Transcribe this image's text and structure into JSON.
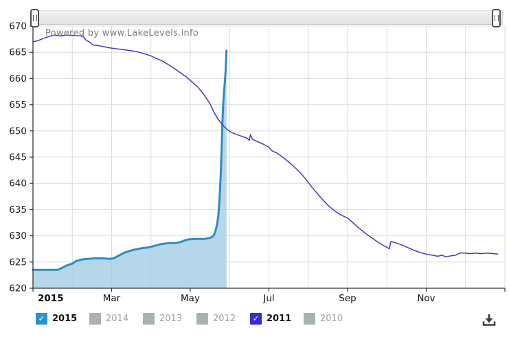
{
  "watermark": "Powered by www.LakeLevels.info",
  "chart_data": {
    "type": "line",
    "ylim": [
      620,
      670
    ],
    "ytick_step": 5,
    "yticks": [
      620,
      625,
      630,
      635,
      640,
      645,
      650,
      655,
      660,
      665,
      670
    ],
    "x_unit": "month (0 = Jan 1, 12 = Dec 31)",
    "x_range": [
      0,
      12
    ],
    "x_tick_months": [
      0,
      2,
      4,
      6,
      8,
      10,
      12
    ],
    "x_labels": [
      {
        "text": "2015",
        "month": 0,
        "bold": true,
        "align": "left"
      },
      {
        "text": "Mar",
        "month": 2,
        "bold": false,
        "align": "center"
      },
      {
        "text": "May",
        "month": 4,
        "bold": false,
        "align": "center"
      },
      {
        "text": "Jul",
        "month": 6,
        "bold": false,
        "align": "center"
      },
      {
        "text": "Sep",
        "month": 8,
        "bold": false,
        "align": "center"
      },
      {
        "text": "Nov",
        "month": 10,
        "bold": false,
        "align": "center"
      }
    ],
    "grid": true,
    "grid_color": "#dcdcdc",
    "axis_color": "#333333",
    "tick_label_color": "#1b1b1b",
    "legend_position": "bottom",
    "series": [
      {
        "name": "2015",
        "type": "area",
        "stroke": "#2b8dc5",
        "stroke_width": 3,
        "fill": "#a4cde5",
        "fill_opacity": 0.8,
        "points": [
          [
            0,
            623.5
          ],
          [
            0.3,
            623.5
          ],
          [
            0.62,
            623.5
          ],
          [
            0.72,
            623.8
          ],
          [
            0.85,
            624.3
          ],
          [
            1.0,
            624.7
          ],
          [
            1.1,
            625.2
          ],
          [
            1.25,
            625.5
          ],
          [
            1.55,
            625.7
          ],
          [
            1.8,
            625.7
          ],
          [
            1.95,
            625.6
          ],
          [
            2.05,
            625.7
          ],
          [
            2.15,
            626.1
          ],
          [
            2.3,
            626.7
          ],
          [
            2.45,
            627.1
          ],
          [
            2.6,
            627.4
          ],
          [
            2.75,
            627.6
          ],
          [
            2.95,
            627.8
          ],
          [
            3.1,
            628.1
          ],
          [
            3.25,
            628.4
          ],
          [
            3.45,
            628.6
          ],
          [
            3.6,
            628.6
          ],
          [
            3.75,
            628.8
          ],
          [
            3.85,
            629.1
          ],
          [
            3.95,
            629.3
          ],
          [
            4.15,
            629.4
          ],
          [
            4.35,
            629.4
          ],
          [
            4.5,
            629.6
          ],
          [
            4.58,
            629.9
          ],
          [
            4.63,
            630.6
          ],
          [
            4.67,
            631.8
          ],
          [
            4.71,
            633.5
          ],
          [
            4.74,
            636.5
          ],
          [
            4.77,
            641.0
          ],
          [
            4.8,
            647.0
          ],
          [
            4.82,
            652.0
          ],
          [
            4.84,
            655.5
          ],
          [
            4.86,
            657.5
          ],
          [
            4.88,
            659.5
          ],
          [
            4.9,
            661.5
          ],
          [
            4.91,
            663.5
          ],
          [
            4.92,
            665.3
          ]
        ]
      },
      {
        "name": "2011",
        "type": "line",
        "stroke": "#4238c8",
        "stroke_width": 1.5,
        "points": [
          [
            0,
            667.0
          ],
          [
            0.12,
            667.2
          ],
          [
            0.25,
            667.6
          ],
          [
            0.4,
            668.0
          ],
          [
            0.55,
            668.3
          ],
          [
            0.7,
            668.1
          ],
          [
            0.85,
            668.3
          ],
          [
            1.0,
            668.2
          ],
          [
            1.15,
            668.2
          ],
          [
            1.28,
            668.0
          ],
          [
            1.35,
            667.3
          ],
          [
            1.45,
            666.9
          ],
          [
            1.52,
            666.4
          ],
          [
            1.65,
            666.3
          ],
          [
            1.85,
            666.0
          ],
          [
            2.0,
            665.8
          ],
          [
            2.2,
            665.6
          ],
          [
            2.4,
            665.4
          ],
          [
            2.6,
            665.2
          ],
          [
            2.8,
            664.8
          ],
          [
            3.0,
            664.3
          ],
          [
            3.15,
            663.8
          ],
          [
            3.3,
            663.3
          ],
          [
            3.45,
            662.6
          ],
          [
            3.6,
            661.9
          ],
          [
            3.75,
            661.1
          ],
          [
            3.9,
            660.3
          ],
          [
            4.05,
            659.3
          ],
          [
            4.2,
            658.3
          ],
          [
            4.35,
            656.9
          ],
          [
            4.5,
            655.2
          ],
          [
            4.6,
            653.6
          ],
          [
            4.7,
            652.3
          ],
          [
            4.85,
            650.9
          ],
          [
            5.0,
            649.9
          ],
          [
            5.15,
            649.4
          ],
          [
            5.3,
            649.0
          ],
          [
            5.45,
            648.6
          ],
          [
            5.5,
            648.2
          ],
          [
            5.53,
            649.3
          ],
          [
            5.58,
            648.4
          ],
          [
            5.7,
            648.0
          ],
          [
            5.85,
            647.5
          ],
          [
            6.0,
            646.9
          ],
          [
            6.08,
            646.2
          ],
          [
            6.2,
            645.8
          ],
          [
            6.35,
            645.0
          ],
          [
            6.5,
            644.1
          ],
          [
            6.65,
            643.1
          ],
          [
            6.8,
            642.0
          ],
          [
            6.95,
            640.7
          ],
          [
            7.1,
            639.2
          ],
          [
            7.25,
            637.9
          ],
          [
            7.4,
            636.6
          ],
          [
            7.55,
            635.5
          ],
          [
            7.7,
            634.6
          ],
          [
            7.85,
            633.9
          ],
          [
            8.0,
            633.4
          ],
          [
            8.15,
            632.4
          ],
          [
            8.3,
            631.4
          ],
          [
            8.45,
            630.5
          ],
          [
            8.6,
            629.7
          ],
          [
            8.75,
            628.9
          ],
          [
            8.9,
            628.2
          ],
          [
            9.0,
            627.8
          ],
          [
            9.06,
            627.5
          ],
          [
            9.1,
            628.9
          ],
          [
            9.25,
            628.6
          ],
          [
            9.4,
            628.2
          ],
          [
            9.55,
            627.7
          ],
          [
            9.7,
            627.2
          ],
          [
            9.85,
            626.8
          ],
          [
            10.0,
            626.5
          ],
          [
            10.15,
            626.3
          ],
          [
            10.3,
            626.1
          ],
          [
            10.4,
            626.3
          ],
          [
            10.5,
            626.0
          ],
          [
            10.65,
            626.2
          ],
          [
            10.75,
            626.3
          ],
          [
            10.85,
            626.7
          ],
          [
            11.0,
            626.7
          ],
          [
            11.1,
            626.6
          ],
          [
            11.25,
            626.7
          ],
          [
            11.4,
            626.6
          ],
          [
            11.55,
            626.7
          ],
          [
            11.7,
            626.6
          ],
          [
            11.82,
            626.5
          ]
        ]
      }
    ]
  },
  "legend": {
    "checked_text_color": "#111111",
    "unchecked_text_color": "#9aa0a4",
    "unchecked_box_color": "#aab1b4",
    "check_glyph": "✓",
    "items": [
      {
        "label": "2015",
        "checked": true,
        "color": "#2a93cd"
      },
      {
        "label": "2014",
        "checked": false,
        "color": "#aab1b4"
      },
      {
        "label": "2013",
        "checked": false,
        "color": "#aab1b4"
      },
      {
        "label": "2012",
        "checked": false,
        "color": "#aab1b4"
      },
      {
        "label": "2011",
        "checked": true,
        "color": "#372bd4"
      },
      {
        "label": "2010",
        "checked": false,
        "color": "#aab1b4"
      }
    ]
  }
}
